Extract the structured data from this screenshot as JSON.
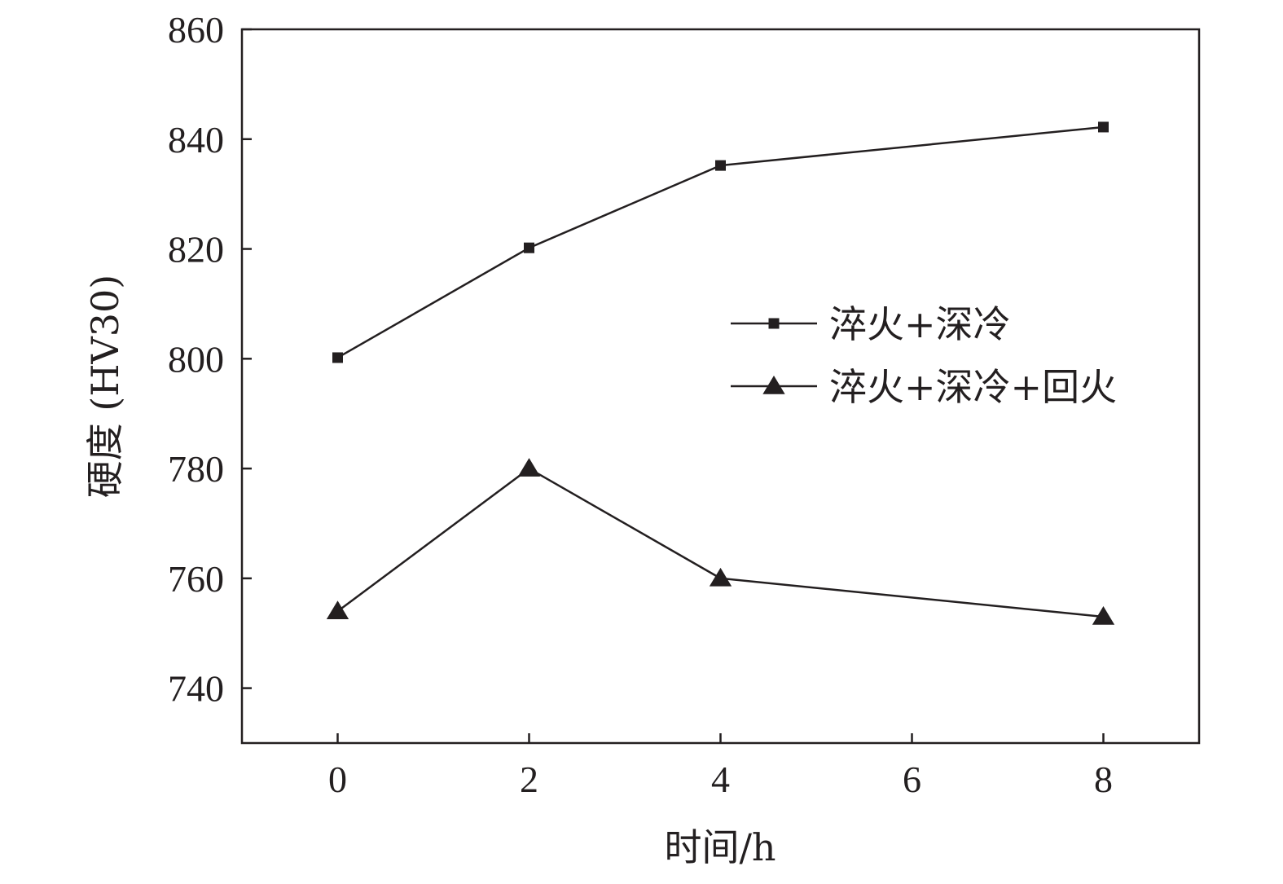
{
  "chart_data": {
    "type": "line",
    "xlabel": "时间/h",
    "ylabel": "硬度 (HV30)",
    "xlim": [
      -1,
      9
    ],
    "ylim": [
      730,
      860
    ],
    "xticks": [
      0,
      2,
      4,
      6,
      8
    ],
    "yticks": [
      740,
      760,
      780,
      800,
      820,
      840,
      860
    ],
    "grid": false,
    "legend_position": "center-right",
    "series": [
      {
        "name": "淬火+深冷",
        "marker": "square",
        "color": "#231f20",
        "x": [
          0,
          2,
          4,
          8
        ],
        "y": [
          800.2,
          820.2,
          835.2,
          842.2
        ]
      },
      {
        "name": "淬火+深冷+回火",
        "marker": "triangle",
        "color": "#231f20",
        "x": [
          0,
          2,
          4,
          8
        ],
        "y": [
          754,
          780,
          760,
          753
        ]
      }
    ]
  }
}
